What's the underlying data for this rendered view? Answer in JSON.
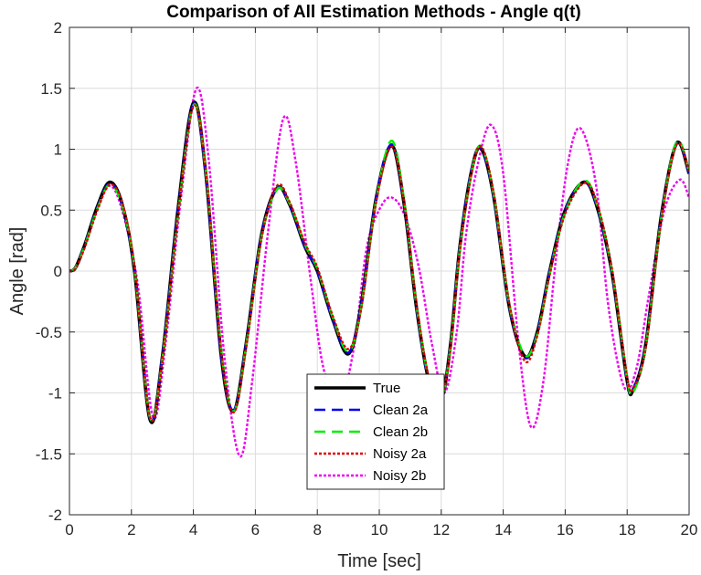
{
  "chart_data": {
    "type": "line",
    "title": "Comparison of All Estimation Methods - Angle q(t)",
    "xlabel": "Time [sec]",
    "ylabel": "Angle [rad]",
    "xlim": [
      0,
      20
    ],
    "ylim": [
      -2,
      2
    ],
    "xticks": [
      0,
      2,
      4,
      6,
      8,
      10,
      12,
      14,
      16,
      18,
      20
    ],
    "yticks": [
      -2,
      -1.5,
      -1,
      -0.5,
      0,
      0.5,
      1,
      1.5,
      2
    ],
    "xtick_labels": [
      "0",
      "2",
      "4",
      "6",
      "8",
      "10",
      "12",
      "14",
      "16",
      "18",
      "20"
    ],
    "ytick_labels": [
      "-2",
      "-1.5",
      "-1",
      "-0.5",
      "0",
      "0.5",
      "1",
      "1.5",
      "2"
    ],
    "grid": true,
    "legend_position": "bottom-center",
    "series": [
      {
        "name": "True",
        "color": "#000000",
        "style": "solid",
        "x": [
          0,
          0.2,
          0.5,
          0.9,
          1.3,
          1.7,
          2.1,
          2.6,
          3.0,
          3.5,
          4.0,
          4.4,
          4.9,
          5.3,
          5.7,
          6.2,
          6.7,
          7.1,
          7.6,
          8.0,
          8.5,
          9.0,
          9.4,
          9.9,
          10.4,
          10.8,
          11.2,
          11.6,
          12.0,
          12.3,
          12.6,
          13.0,
          13.3,
          13.7,
          14.2,
          14.7,
          15.1,
          15.5,
          16.0,
          16.6,
          17.0,
          17.5,
          18.0,
          18.2,
          18.6,
          19.1,
          19.6,
          20.0
        ],
        "y": [
          0,
          0.03,
          0.22,
          0.53,
          0.73,
          0.55,
          0.0,
          -1.22,
          -0.7,
          0.5,
          1.38,
          0.8,
          -0.7,
          -1.15,
          -0.6,
          0.3,
          0.68,
          0.55,
          0.2,
          0.0,
          -0.4,
          -0.68,
          -0.3,
          0.6,
          1.03,
          0.55,
          -0.3,
          -0.9,
          -1.05,
          -0.6,
          0.2,
          0.85,
          1.0,
          0.6,
          -0.3,
          -0.7,
          -0.5,
          0.0,
          0.5,
          0.73,
          0.55,
          0.0,
          -0.9,
          -0.97,
          -0.6,
          0.45,
          1.05,
          0.8
        ]
      },
      {
        "name": "Clean 2a",
        "color": "#0000ee",
        "style": "dashed",
        "x": [
          0,
          0.2,
          0.5,
          0.9,
          1.3,
          1.7,
          2.1,
          2.6,
          3.0,
          3.5,
          4.0,
          4.4,
          4.9,
          5.3,
          5.7,
          6.2,
          6.7,
          7.1,
          7.6,
          8.0,
          8.5,
          9.0,
          9.4,
          9.9,
          10.4,
          10.8,
          11.2,
          11.6,
          12.0,
          12.3,
          12.6,
          13.0,
          13.3,
          13.7,
          14.2,
          14.7,
          15.1,
          15.5,
          16.0,
          16.6,
          17.0,
          17.5,
          18.0,
          18.2,
          18.6,
          19.1,
          19.6,
          20.0
        ],
        "y": [
          0,
          0.03,
          0.22,
          0.52,
          0.72,
          0.54,
          0.0,
          -1.21,
          -0.7,
          0.5,
          1.37,
          0.8,
          -0.7,
          -1.14,
          -0.6,
          0.3,
          0.68,
          0.55,
          0.2,
          0.0,
          -0.4,
          -0.67,
          -0.3,
          0.6,
          1.04,
          0.55,
          -0.3,
          -0.9,
          -1.04,
          -0.6,
          0.2,
          0.86,
          1.0,
          0.6,
          -0.3,
          -0.71,
          -0.5,
          0.0,
          0.5,
          0.73,
          0.55,
          0.0,
          -0.9,
          -0.97,
          -0.6,
          0.45,
          1.05,
          0.8
        ]
      },
      {
        "name": "Clean 2b",
        "color": "#00ee00",
        "style": "dashed",
        "x": [
          0,
          0.2,
          0.5,
          0.9,
          1.3,
          1.7,
          2.1,
          2.6,
          3.0,
          3.5,
          4.0,
          4.4,
          4.9,
          5.3,
          5.7,
          6.2,
          6.7,
          7.1,
          7.6,
          8.0,
          8.5,
          9.0,
          9.4,
          9.9,
          10.4,
          10.8,
          11.2,
          11.6,
          12.0,
          12.3,
          12.6,
          13.0,
          13.3,
          13.7,
          14.2,
          14.7,
          15.1,
          15.5,
          16.0,
          16.6,
          17.0,
          17.5,
          18.0,
          18.2,
          18.6,
          19.1,
          19.6,
          20.0
        ],
        "y": [
          0,
          0.03,
          0.21,
          0.51,
          0.71,
          0.54,
          0.02,
          -1.2,
          -0.72,
          0.45,
          1.36,
          0.82,
          -0.65,
          -1.15,
          -0.62,
          0.28,
          0.67,
          0.56,
          0.22,
          0.02,
          -0.38,
          -0.66,
          -0.32,
          0.58,
          1.07,
          0.58,
          -0.28,
          -0.88,
          -1.04,
          -0.62,
          0.18,
          0.84,
          1.02,
          0.62,
          -0.28,
          -0.69,
          -0.52,
          -0.02,
          0.48,
          0.74,
          0.57,
          0.02,
          -0.88,
          -0.99,
          -0.62,
          0.43,
          1.06,
          0.82
        ]
      },
      {
        "name": "Noisy 2a",
        "color": "#dd0000",
        "style": "dotted",
        "x": [
          0,
          0.2,
          0.5,
          0.9,
          1.3,
          1.7,
          2.1,
          2.6,
          3.0,
          3.5,
          4.0,
          4.4,
          4.9,
          5.3,
          5.7,
          6.2,
          6.7,
          7.1,
          7.6,
          8.0,
          8.5,
          9.0,
          9.4,
          9.9,
          10.4,
          10.8,
          11.2,
          11.6,
          12.0,
          12.3,
          12.6,
          13.0,
          13.3,
          13.7,
          14.2,
          14.7,
          15.1,
          15.5,
          16.0,
          16.6,
          17.0,
          17.5,
          18.0,
          18.2,
          18.6,
          19.1,
          19.6,
          20.0
        ],
        "y": [
          0,
          0.02,
          0.2,
          0.5,
          0.71,
          0.56,
          0.03,
          -1.2,
          -0.73,
          0.45,
          1.35,
          0.83,
          -0.67,
          -1.16,
          -0.63,
          0.27,
          0.7,
          0.57,
          0.23,
          0.03,
          -0.37,
          -0.64,
          -0.33,
          0.57,
          1.02,
          0.57,
          -0.27,
          -0.87,
          -1.03,
          -0.63,
          0.17,
          0.83,
          1.02,
          0.63,
          -0.27,
          -0.74,
          -0.53,
          -0.03,
          0.47,
          0.72,
          0.58,
          0.03,
          -0.87,
          -0.96,
          -0.63,
          0.42,
          1.04,
          0.82
        ]
      },
      {
        "name": "Noisy 2b",
        "color": "#ee00ee",
        "style": "dotted",
        "x": [
          0,
          0.2,
          0.5,
          0.9,
          1.3,
          1.7,
          2.2,
          2.7,
          3.1,
          3.6,
          4.1,
          4.5,
          5.0,
          5.5,
          5.9,
          6.4,
          6.9,
          7.3,
          7.8,
          8.2,
          8.7,
          9.2,
          9.6,
          10.1,
          10.5,
          10.9,
          11.3,
          11.7,
          12.1,
          12.5,
          12.8,
          13.2,
          13.6,
          14.0,
          14.5,
          14.9,
          15.3,
          15.7,
          16.1,
          16.5,
          17.0,
          17.4,
          17.9,
          18.3,
          18.7,
          19.2,
          19.7,
          20.0
        ],
        "y": [
          0,
          0.02,
          0.2,
          0.5,
          0.7,
          0.5,
          -0.1,
          -1.2,
          -0.6,
          0.6,
          1.5,
          0.9,
          -0.7,
          -1.52,
          -0.9,
          0.3,
          1.25,
          0.9,
          -0.1,
          -0.8,
          -1.1,
          -0.6,
          0.2,
          0.55,
          0.59,
          0.4,
          0.0,
          -0.6,
          -1.0,
          -0.5,
          0.3,
          0.9,
          1.2,
          0.8,
          -0.6,
          -1.28,
          -0.9,
          0.1,
          0.9,
          1.17,
          0.7,
          -0.3,
          -0.95,
          -0.8,
          -0.2,
          0.5,
          0.75,
          0.6
        ]
      }
    ]
  }
}
